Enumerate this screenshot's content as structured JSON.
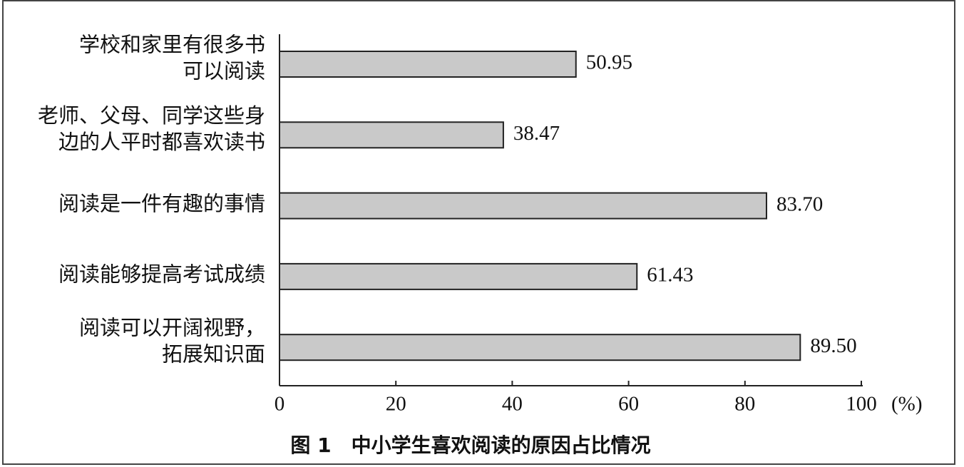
{
  "chart_data": {
    "type": "bar",
    "orientation": "horizontal",
    "title": "图 1　中小学生喜欢阅读的原因占比情况",
    "x_label": "(%)",
    "categories": [
      "学校和家里有很多书\n可以阅读",
      "老师、父母、同学这些身\n边的人平时都喜欢读书",
      "阅读是一件有趣的事情",
      "阅读能够提高考试成绩",
      "阅读可以开阔视野，\n拓展知识面"
    ],
    "values": [
      50.95,
      38.47,
      83.7,
      61.43,
      89.5
    ],
    "value_labels": [
      "50.95",
      "38.47",
      "83.70",
      "61.43",
      "89.50"
    ],
    "color": "#c9c9c9",
    "xlim": [
      0,
      100
    ],
    "xticks": [
      0,
      20,
      40,
      60,
      80,
      100
    ]
  }
}
